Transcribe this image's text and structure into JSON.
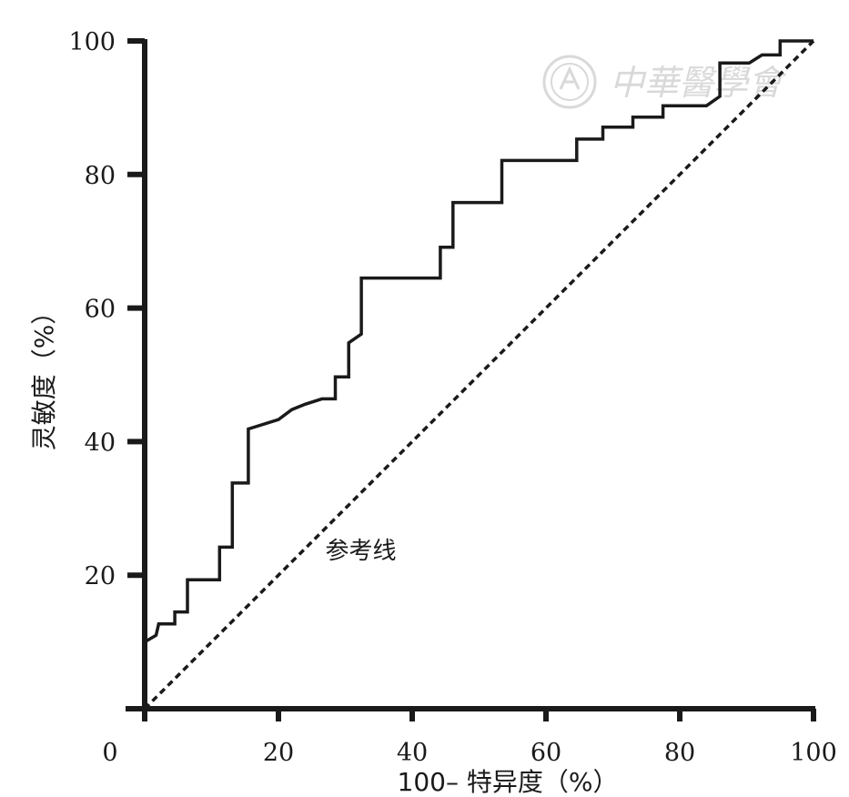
{
  "chart_data": {
    "type": "line",
    "title": "",
    "xlabel": "100– 特异度（%）",
    "ylabel": "灵敏度（%）",
    "xlim": [
      0,
      100
    ],
    "ylim": [
      0,
      100
    ],
    "x_ticks": [
      "0",
      "20",
      "40",
      "60",
      "80",
      "100"
    ],
    "y_ticks": [
      "20",
      "40",
      "60",
      "80",
      "100"
    ],
    "grid": false,
    "legend": "none",
    "series": [
      {
        "style": "solid-step",
        "color": "#1a1a1a",
        "points": [
          [
            0,
            10
          ],
          [
            1.7,
            11
          ],
          [
            2.1,
            12.7
          ],
          [
            4.5,
            12.7
          ],
          [
            4.5,
            14.5
          ],
          [
            6.4,
            14.5
          ],
          [
            6.4,
            19.3
          ],
          [
            11.2,
            19.3
          ],
          [
            11.2,
            24.2
          ],
          [
            13.1,
            24.2
          ],
          [
            13.1,
            33.8
          ],
          [
            15.5,
            33.8
          ],
          [
            15.5,
            41.9
          ],
          [
            20,
            43.3
          ],
          [
            22,
            44.8
          ],
          [
            24,
            45.6
          ],
          [
            26.5,
            46.4
          ],
          [
            28.5,
            46.4
          ],
          [
            28.5,
            49.7
          ],
          [
            30.5,
            49.7
          ],
          [
            30.5,
            54.8
          ],
          [
            32.4,
            56.1
          ],
          [
            32.4,
            64.5
          ],
          [
            44.2,
            64.5
          ],
          [
            44.2,
            69.1
          ],
          [
            46.1,
            69.1
          ],
          [
            46.1,
            75.8
          ],
          [
            53.4,
            75.8
          ],
          [
            53.4,
            82.1
          ],
          [
            64.6,
            82.1
          ],
          [
            64.6,
            85.3
          ],
          [
            68.5,
            85.3
          ],
          [
            68.5,
            87.1
          ],
          [
            73,
            87.1
          ],
          [
            73,
            88.6
          ],
          [
            77.5,
            88.6
          ],
          [
            77.5,
            90.3
          ],
          [
            84,
            90.3
          ],
          [
            86,
            91.7
          ],
          [
            86,
            96.7
          ],
          [
            90.4,
            96.7
          ],
          [
            92.3,
            97.9
          ],
          [
            95,
            97.9
          ],
          [
            95,
            100
          ],
          [
            100,
            100
          ]
        ]
      },
      {
        "name": "参考线",
        "style": "dashed",
        "color": "#1a1a1a",
        "points": [
          [
            0,
            0
          ],
          [
            100,
            100
          ]
        ]
      }
    ],
    "annotations": [
      {
        "text": "参考线",
        "x": 27,
        "y": 22.5
      }
    ]
  },
  "watermark": {
    "text": "中華醫學會",
    "color": "#d9d9d9"
  }
}
